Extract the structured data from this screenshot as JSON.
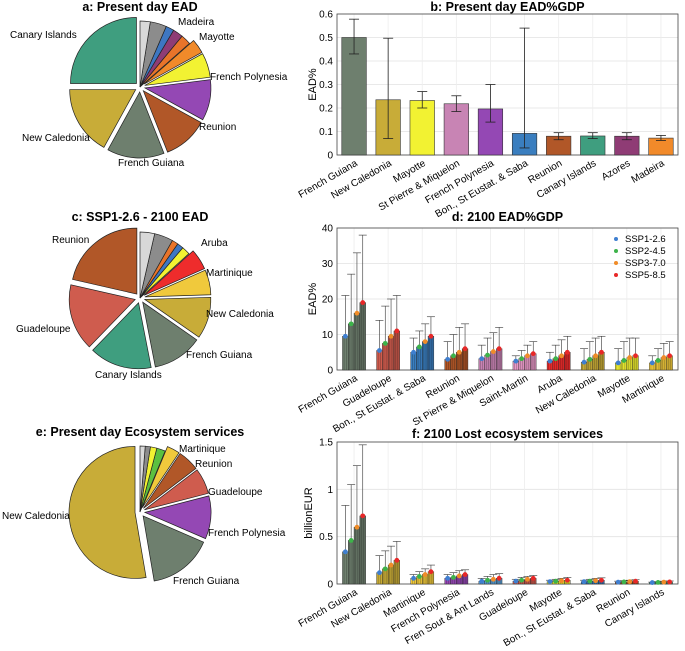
{
  "colors": {
    "French Guiana": "#6e7f6e",
    "New Caledonia": "#c8ac38",
    "Mayotte": "#f2f232",
    "St Pierre & Miquelon": "#c884b4",
    "French Polynesia": "#9448b4",
    "Bon., St Eustat. & Saba": "#3a7ebf",
    "Reunion": "#b15728",
    "Canary Islands": "#3f9e7f",
    "Azores": "#8f3c75",
    "Madeira": "#f18a2a",
    "Guadeloupe": "#cf5c4e",
    "Martinique": "#f0c93c",
    "Aruba": "#ee2c2c",
    "Saint-Martin": "#e89ac8",
    "Fren Sout & Ant Lands": "#5aa0d8",
    "other1": "#8c8c8c",
    "other2": "#b0b0b0",
    "other3": "#e8742a",
    "other4": "#3e77c2",
    "other5": "#5cc040",
    "other6": "#d8d8d8"
  },
  "scenario_colors": {
    "SSP1-2.6": "#3f7fd0",
    "SSP2-4.5": "#3db34a",
    "SSP3-7.0": "#f08c28",
    "SSP5-8.5": "#e82828"
  },
  "chart_data": [
    {
      "id": "a",
      "type": "pie",
      "title": "a: Present day EAD",
      "labels": [
        "Canary Islands",
        "New Caledonia",
        "French Guiana",
        "Reunion",
        "French Polynesia",
        "Mayotte",
        "Madeira"
      ],
      "slices": [
        {
          "name": "Canary Islands",
          "value": 25,
          "labeled": true,
          "explode": true
        },
        {
          "name": "New Caledonia",
          "value": 17,
          "labeled": true,
          "explode": true
        },
        {
          "name": "French Guiana",
          "value": 14,
          "labeled": true,
          "explode": true
        },
        {
          "name": "Reunion",
          "value": 11,
          "labeled": true,
          "explode": true
        },
        {
          "name": "French Polynesia",
          "value": 10,
          "labeled": true,
          "explode": true
        },
        {
          "name": "Mayotte",
          "value": 6,
          "labeled": true,
          "explode": true
        },
        {
          "name": "Madeira",
          "value": 3.5,
          "labeled": true,
          "explode": true
        },
        {
          "name": "other3",
          "value": 2.5,
          "labeled": false,
          "explode": false
        },
        {
          "name": "Azores",
          "value": 2.5,
          "labeled": false,
          "explode": false
        },
        {
          "name": "other4",
          "value": 2,
          "labeled": false,
          "explode": false
        },
        {
          "name": "other1",
          "value": 4,
          "labeled": false,
          "explode": false
        },
        {
          "name": "other6",
          "value": 2.5,
          "labeled": false,
          "explode": false
        }
      ]
    },
    {
      "id": "b",
      "type": "bar",
      "title": "b: Present day EAD%GDP",
      "ylabel": "EAD%",
      "ylim": [
        0,
        0.6
      ],
      "yticks": [
        0,
        0.1,
        0.2,
        0.3,
        0.4,
        0.5,
        0.6
      ],
      "grid": true,
      "categories": [
        "French Guiana",
        "New Caledonia",
        "Mayotte",
        "St Pierre & Miquelon",
        "French Polynesia",
        "Bon., St Eustat. & Saba",
        "Reunion",
        "Canary Islands",
        "Azores",
        "Madeira"
      ],
      "values": [
        0.5,
        0.235,
        0.232,
        0.218,
        0.196,
        0.092,
        0.08,
        0.081,
        0.08,
        0.072
      ],
      "err_low": [
        0.43,
        0.07,
        0.2,
        0.185,
        0.14,
        0.03,
        0.065,
        0.07,
        0.065,
        0.062
      ],
      "err_high": [
        0.578,
        0.497,
        0.27,
        0.252,
        0.3,
        0.54,
        0.095,
        0.095,
        0.095,
        0.083
      ]
    },
    {
      "id": "c",
      "type": "pie",
      "title": "c: SSP1-2.6 - 2100 EAD",
      "labels": [
        "Reunion",
        "Guadeloupe",
        "Canary Islands",
        "French Guiana",
        "New Caledonia",
        "Martinique",
        "Aruba"
      ],
      "slices": [
        {
          "name": "Reunion",
          "value": 21,
          "labeled": true,
          "explode": true
        },
        {
          "name": "Guadeloupe",
          "value": 16,
          "labeled": true,
          "explode": true
        },
        {
          "name": "Canary Islands",
          "value": 15,
          "labeled": true,
          "explode": true
        },
        {
          "name": "French Guiana",
          "value": 12,
          "labeled": true,
          "explode": true
        },
        {
          "name": "New Caledonia",
          "value": 10,
          "labeled": true,
          "explode": true
        },
        {
          "name": "Martinique",
          "value": 6,
          "labeled": true,
          "explode": true
        },
        {
          "name": "Aruba",
          "value": 5,
          "labeled": true,
          "explode": true
        },
        {
          "name": "Mayotte",
          "value": 2,
          "labeled": false,
          "explode": false
        },
        {
          "name": "other4",
          "value": 1.5,
          "labeled": false,
          "explode": false
        },
        {
          "name": "other3",
          "value": 1.5,
          "labeled": false,
          "explode": false
        },
        {
          "name": "other1",
          "value": 4.5,
          "labeled": false,
          "explode": false
        },
        {
          "name": "other6",
          "value": 3.5,
          "labeled": false,
          "explode": false
        }
      ]
    },
    {
      "id": "d",
      "type": "bar",
      "title": "d: 2100 EAD%GDP",
      "ylabel": "EAD%",
      "ylim": [
        0,
        40
      ],
      "yticks": [
        0,
        10,
        20,
        30,
        40
      ],
      "grid": true,
      "legend": [
        "SSP1-2.6",
        "SSP2-4.5",
        "SSP3-7.0",
        "SSP5-8.5"
      ],
      "legend_loc": "top-right",
      "categories": [
        "French Guiana",
        "Guadeloupe",
        "Bon., St Eustat. & Saba",
        "Reunion",
        "St Pierre & Miquelon",
        "Saint-Martin",
        "Aruba",
        "New Caledonia",
        "Mayotte",
        "Martinique"
      ],
      "series": [
        {
          "name": "SSP1-2.6",
          "values": [
            9.5,
            5.5,
            5,
            3,
            3.2,
            2.5,
            2.5,
            2.2,
            2,
            2
          ],
          "err_high": [
            21,
            14,
            9,
            8,
            7,
            4,
            5,
            6,
            6,
            4
          ]
        },
        {
          "name": "SSP2-4.5",
          "values": [
            13,
            7.5,
            6.5,
            4,
            4.2,
            3.2,
            3.2,
            3,
            2.7,
            2.7
          ],
          "err_high": [
            27,
            18,
            11,
            10,
            9,
            5.5,
            7,
            8,
            8,
            6
          ]
        },
        {
          "name": "SSP3-7.0",
          "values": [
            16,
            9.5,
            8,
            5,
            5.2,
            4,
            4,
            4,
            3.5,
            3.5
          ],
          "err_high": [
            33,
            20,
            13,
            12,
            10.5,
            7,
            8.5,
            9,
            9,
            7.5
          ]
        },
        {
          "name": "SSP5-8.5",
          "values": [
            19,
            11,
            9.5,
            6,
            6,
            4.6,
            5,
            5,
            4,
            4
          ],
          "err_high": [
            38,
            21,
            15,
            13,
            12,
            8,
            9.5,
            9.5,
            9,
            8
          ]
        }
      ]
    },
    {
      "id": "e",
      "type": "pie",
      "title": "e: Present day Ecosystem services",
      "labels": [
        "New Caledonia",
        "French Guiana",
        "French Polynesia",
        "Guadeloupe",
        "Reunion",
        "Martinique"
      ],
      "slices": [
        {
          "name": "New Caledonia",
          "value": 50,
          "labeled": true,
          "explode": true
        },
        {
          "name": "French Guiana",
          "value": 15,
          "labeled": true,
          "explode": true
        },
        {
          "name": "French Polynesia",
          "value": 10,
          "labeled": true,
          "explode": true
        },
        {
          "name": "Guadeloupe",
          "value": 6,
          "labeled": true,
          "explode": true
        },
        {
          "name": "Reunion",
          "value": 5,
          "labeled": true,
          "explode": true
        },
        {
          "name": "Martinique",
          "value": 3,
          "labeled": true,
          "explode": true
        },
        {
          "name": "other5",
          "value": 2,
          "labeled": false,
          "explode": false
        },
        {
          "name": "Mayotte",
          "value": 1.5,
          "labeled": false,
          "explode": false
        },
        {
          "name": "other1",
          "value": 1.2,
          "labeled": false,
          "explode": false
        },
        {
          "name": "other6",
          "value": 1.2,
          "labeled": false,
          "explode": false
        }
      ]
    },
    {
      "id": "f",
      "type": "bar",
      "title": "f: 2100 Lost ecosystem services",
      "ylabel": "billionEUR",
      "ylim": [
        0,
        1.5
      ],
      "yticks": [
        0,
        0.5,
        1,
        1.5
      ],
      "grid": true,
      "categories": [
        "French Guiana",
        "New Caledonia",
        "Martinique",
        "French Polynesia",
        "Fren Sout & Ant Lands",
        "Guadeloupe",
        "Mayotte",
        "Bon., St Eustat. & Saba",
        "Reunion",
        "Canary Islands"
      ],
      "series": [
        {
          "name": "SSP1-2.6",
          "values": [
            0.34,
            0.12,
            0.06,
            0.06,
            0.03,
            0.03,
            0.025,
            0.025,
            0.02,
            0.015
          ],
          "err_high": [
            0.83,
            0.3,
            0.1,
            0.1,
            0.06,
            0.05,
            0.04,
            0.04,
            0.03,
            0.02
          ]
        },
        {
          "name": "SSP2-4.5",
          "values": [
            0.46,
            0.16,
            0.08,
            0.07,
            0.04,
            0.04,
            0.03,
            0.03,
            0.022,
            0.017
          ],
          "err_high": [
            1.05,
            0.35,
            0.13,
            0.12,
            0.08,
            0.07,
            0.05,
            0.05,
            0.035,
            0.025
          ]
        },
        {
          "name": "SSP3-7.0",
          "values": [
            0.6,
            0.2,
            0.1,
            0.085,
            0.05,
            0.05,
            0.035,
            0.035,
            0.025,
            0.02
          ],
          "err_high": [
            1.25,
            0.4,
            0.16,
            0.14,
            0.1,
            0.08,
            0.06,
            0.06,
            0.04,
            0.03
          ]
        },
        {
          "name": "SSP5-8.5",
          "values": [
            0.72,
            0.25,
            0.13,
            0.1,
            0.06,
            0.06,
            0.04,
            0.04,
            0.03,
            0.022
          ],
          "err_high": [
            1.47,
            0.45,
            0.2,
            0.15,
            0.11,
            0.09,
            0.07,
            0.065,
            0.045,
            0.032
          ]
        }
      ]
    }
  ]
}
